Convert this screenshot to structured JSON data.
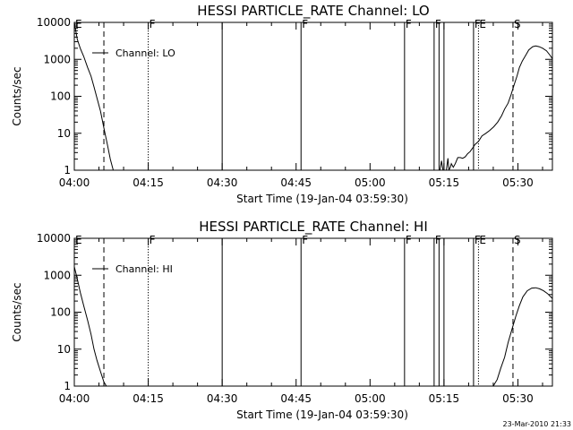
{
  "footer": {
    "timestamp": "23-Mar-2010 21:33"
  },
  "chart_data": [
    {
      "type": "line",
      "title": "HESSI PARTICLE_RATE Channel: LO",
      "xlabel": "Start Time (19-Jan-04 03:59:30)",
      "ylabel": "Counts/sec",
      "yscale": "log",
      "xlim": [
        "04:00",
        "05:37"
      ],
      "ylim": [
        1,
        10000
      ],
      "xticks": [
        "04:00",
        "04:15",
        "04:30",
        "04:45",
        "05:00",
        "05:15",
        "05:30"
      ],
      "yticks": [
        "1",
        "10",
        "100",
        "1000",
        "10000"
      ],
      "legend": {
        "entries": [
          "Channel: LO"
        ],
        "position": "top-left"
      },
      "markers": [
        {
          "time": "04:06",
          "style": "dashed"
        },
        {
          "time": "04:15",
          "style": "dotted",
          "label": "F"
        },
        {
          "time": "04:30",
          "style": "solid"
        },
        {
          "time": "04:46",
          "style": "solid",
          "label": "F"
        },
        {
          "time": "05:07",
          "style": "solid",
          "label": "F"
        },
        {
          "time": "05:13",
          "style": "solid",
          "label": "F"
        },
        {
          "time": "05:14",
          "style": "solid"
        },
        {
          "time": "05:15",
          "style": "solid"
        },
        {
          "time": "05:21",
          "style": "solid",
          "label": "F"
        },
        {
          "time": "05:22",
          "style": "dotted",
          "label": "E"
        },
        {
          "time": "05:29",
          "style": "dashed",
          "label": "S"
        },
        {
          "time": "05:37",
          "style": "dash-dot"
        }
      ],
      "edge_label": "E",
      "series": [
        {
          "segments": [
            {
              "x": [
                "04:00",
                "04:00.6",
                "04:01.2",
                "04:01.9",
                "04:02.7",
                "04:03.4",
                "04:04.0",
                "04:04.6",
                "04:05.3",
                "04:06.0",
                "04:06.7",
                "04:07.3",
                "04:07.9"
              ],
              "y": [
                10000,
                3500,
                2000,
                1200,
                600,
                350,
                180,
                90,
                40,
                14,
                5,
                2,
                1
              ]
            },
            {
              "x": [
                "05:14.2",
                "05:14.5",
                "05:14.8",
                "05:15.0",
                "05:15.2",
                "05:15.5",
                "05:15.8",
                "05:16.0",
                "05:16.3",
                "05:16.5",
                "05:16.9",
                "05:17.3",
                "05:17.8",
                "05:18.3",
                "05:18.8",
                "05:19.3",
                "05:19.8",
                "05:20.3",
                "05:20.7",
                "05:21.3",
                "05:22.0",
                "05:22.7",
                "05:23.5",
                "05:24.3",
                "05:25.1",
                "05:25.9",
                "05:26.7",
                "05:27.3",
                "05:28.0",
                "05:28.6",
                "05:29.2",
                "05:29.8",
                "05:30.3",
                "05:30.9",
                "05:31.6",
                "05:32.2",
                "05:33.0",
                "05:33.6",
                "05:34.3",
                "05:35.0",
                "05:35.8",
                "05:36.5",
                "05:37.3"
              ],
              "y": [
                1,
                1.8,
                1,
                1,
                1,
                1,
                2.1,
                1,
                1.2,
                1.5,
                1.2,
                1.5,
                2.2,
                2.2,
                2.1,
                2.3,
                2.8,
                3.2,
                3.8,
                5,
                6,
                8.5,
                10,
                12,
                15,
                20,
                30,
                45,
                65,
                110,
                200,
                350,
                600,
                900,
                1300,
                1800,
                2200,
                2300,
                2200,
                2000,
                1700,
                1300,
                900
              ]
            }
          ]
        }
      ]
    },
    {
      "type": "line",
      "title": "HESSI PARTICLE_RATE Channel: HI",
      "xlabel": "Start Time (19-Jan-04 03:59:30)",
      "ylabel": "Counts/sec",
      "yscale": "log",
      "xlim": [
        "04:00",
        "05:37"
      ],
      "ylim": [
        1,
        10000
      ],
      "xticks": [
        "04:00",
        "04:15",
        "04:30",
        "04:45",
        "05:00",
        "05:15",
        "05:30"
      ],
      "yticks": [
        "1",
        "10",
        "100",
        "1000",
        "10000"
      ],
      "legend": {
        "entries": [
          "Channel: HI"
        ],
        "position": "top-left"
      },
      "markers": [
        {
          "time": "04:06",
          "style": "dashed"
        },
        {
          "time": "04:15",
          "style": "dotted",
          "label": "F"
        },
        {
          "time": "04:30",
          "style": "solid"
        },
        {
          "time": "04:46",
          "style": "solid",
          "label": "F"
        },
        {
          "time": "05:07",
          "style": "solid",
          "label": "F"
        },
        {
          "time": "05:13",
          "style": "solid",
          "label": "F"
        },
        {
          "time": "05:14",
          "style": "solid"
        },
        {
          "time": "05:15",
          "style": "solid"
        },
        {
          "time": "05:21",
          "style": "solid",
          "label": "F"
        },
        {
          "time": "05:22",
          "style": "dotted",
          "label": "E"
        },
        {
          "time": "05:29",
          "style": "dashed",
          "label": "S"
        },
        {
          "time": "05:37",
          "style": "dash-dot"
        }
      ],
      "edge_label": "E",
      "series": [
        {
          "segments": [
            {
              "x": [
                "04:00",
                "04:00.6",
                "04:01.2",
                "04:01.9",
                "04:02.7",
                "04:03.4",
                "04:04.0",
                "04:04.6",
                "04:05.3",
                "04:06.0",
                "04:06.5"
              ],
              "y": [
                1700,
                800,
                350,
                150,
                60,
                25,
                10,
                5,
                2.5,
                1.3,
                1
              ]
            },
            {
              "x": [
                "05:25.0",
                "05:25.8",
                "05:26.5",
                "05:27.3",
                "05:28.0",
                "05:28.8",
                "05:29.6",
                "05:30.3",
                "05:31.0",
                "05:31.9",
                "05:32.8",
                "05:33.6",
                "05:34.4",
                "05:35.2",
                "05:36.0",
                "05:36.8",
                "05:37.3"
              ],
              "y": [
                1,
                1.5,
                3,
                6,
                15,
                35,
                80,
                150,
                260,
                380,
                450,
                460,
                430,
                380,
                320,
                250,
                210
              ]
            }
          ]
        }
      ]
    }
  ]
}
